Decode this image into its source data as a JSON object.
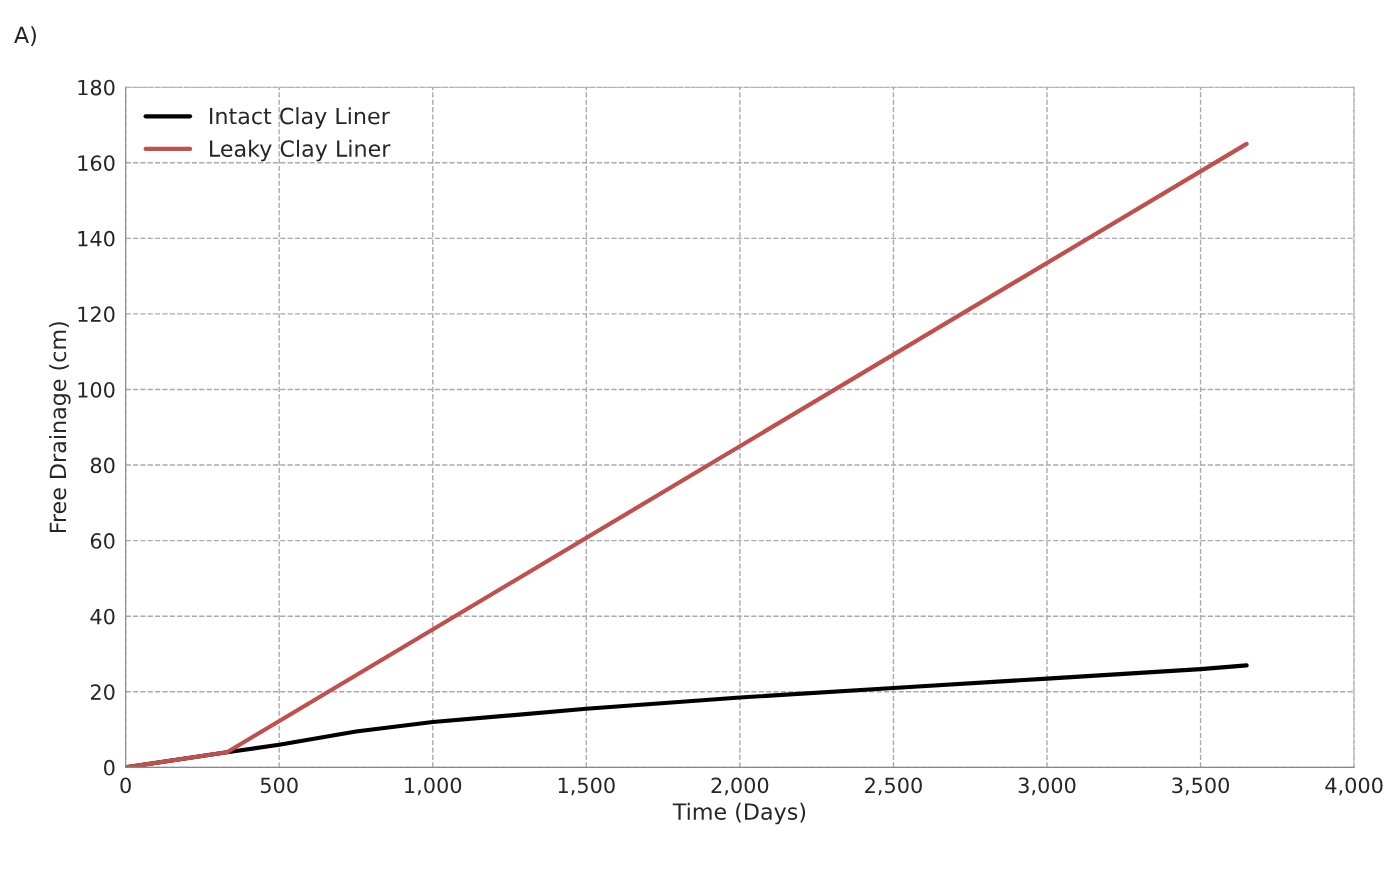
{
  "chart_data": {
    "type": "line",
    "xlabel": "Time (Days)",
    "ylabel": "Free Drainage (cm)",
    "annotations": [
      "A)"
    ],
    "xlim": [
      0,
      4000
    ],
    "xticks": [
      {
        "value": 0,
        "label": "0"
      },
      {
        "value": 500,
        "label": "500"
      },
      {
        "value": 1000,
        "label": "1,000"
      },
      {
        "value": 1500,
        "label": "1,500"
      },
      {
        "value": 2000,
        "label": "2,000"
      },
      {
        "value": 2500,
        "label": "2,500"
      },
      {
        "value": 3000,
        "label": "3,000"
      },
      {
        "value": 3500,
        "label": "3,500"
      },
      {
        "value": 4000,
        "label": "4,000"
      }
    ],
    "ylim": [
      0,
      180
    ],
    "yticks": [
      0,
      20,
      40,
      60,
      80,
      100,
      120,
      140,
      160,
      180
    ],
    "grid": true,
    "legend": "top left",
    "series": [
      {
        "name": "Intact Clay Liner",
        "color": "#000000",
        "x": [
          0,
          330,
          500,
          750,
          1000,
          1500,
          2000,
          2500,
          3000,
          3500,
          3650
        ],
        "values": [
          0,
          4,
          6,
          9.5,
          12,
          15.5,
          18.5,
          21,
          23.5,
          26,
          27
        ]
      },
      {
        "name": "Leaky Clay Liner",
        "color": "#c0504d",
        "x": [
          0,
          330,
          3650
        ],
        "values": [
          0,
          4,
          165
        ]
      }
    ]
  }
}
